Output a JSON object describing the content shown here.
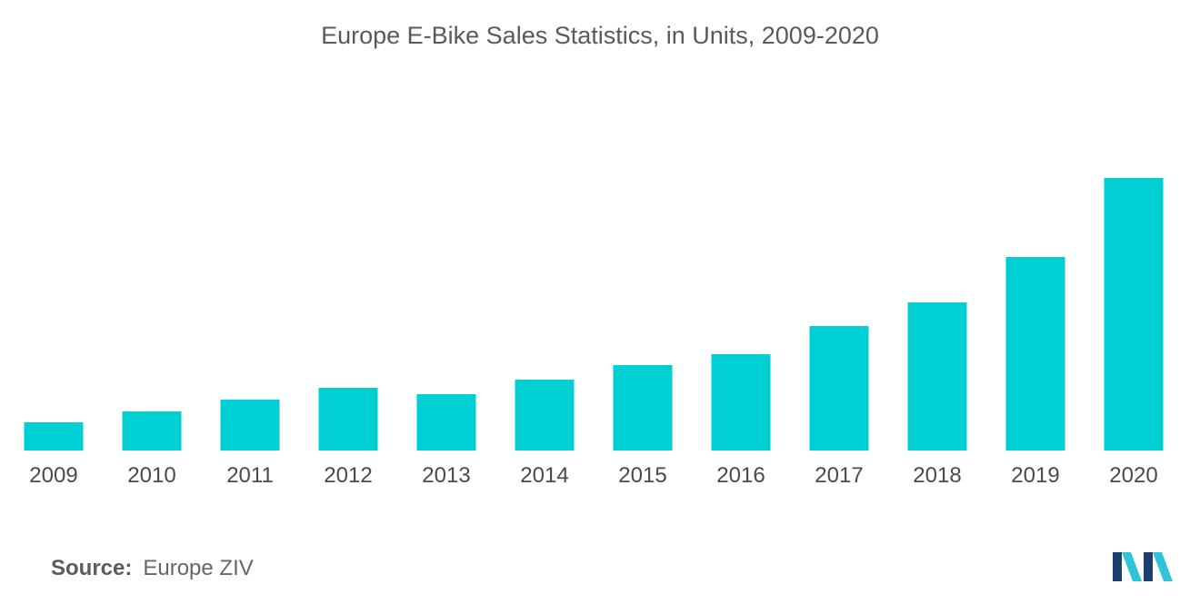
{
  "chart_data": {
    "type": "bar",
    "title": "Europe E-Bike Sales Statistics, in Units, 2009-2020",
    "xlabel": "",
    "ylabel": "",
    "categories": [
      "2009",
      "2010",
      "2011",
      "2012",
      "2013",
      "2014",
      "2015",
      "2016",
      "2017",
      "2018",
      "2019",
      "2020"
    ],
    "values": [
      31,
      43,
      56,
      69,
      62,
      78,
      94,
      106,
      137,
      163,
      213,
      300
    ],
    "ylim": [
      0,
      300
    ],
    "grid": false,
    "legend": "none",
    "bar_color": "#00cfd3"
  },
  "footer": {
    "source_label": "Source:",
    "source_value": "Europe ZIV"
  },
  "logo": {
    "icon": "mordor-intelligence-logo-icon",
    "colors": [
      "#1c3f6e",
      "#2fc4d9"
    ]
  }
}
